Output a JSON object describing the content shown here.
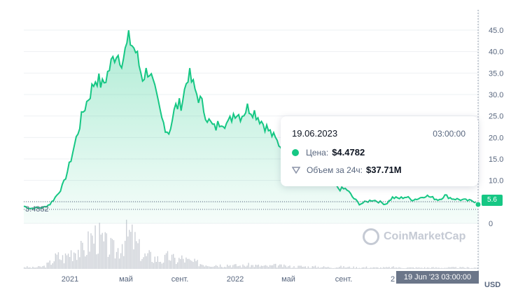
{
  "chart_data": {
    "type": "area",
    "y_axis": {
      "ticks": [
        "45.0",
        "40.0",
        "35.0",
        "30.0",
        "25.0",
        "20.0",
        "15.0",
        "10.0",
        "5.0",
        "0"
      ],
      "range": [
        0,
        48
      ],
      "unit": "USD"
    },
    "x_axis": {
      "ticks": [
        "2021",
        "май",
        "сент.",
        "2022",
        "май",
        "сент.",
        "2"
      ]
    },
    "series": [
      {
        "values": [
          4.0,
          3.5,
          3.6,
          3.7,
          4.5,
          6.5,
          9,
          14,
          20,
          26,
          30,
          34,
          32,
          36,
          40,
          38,
          43,
          40,
          34,
          36,
          30,
          24,
          21,
          27,
          28,
          35,
          31,
          28,
          24,
          22,
          24,
          23,
          26,
          25,
          27,
          26,
          24,
          22,
          20,
          18,
          17,
          16,
          13,
          11,
          10,
          10,
          9,
          9,
          8,
          8,
          6,
          4.5,
          5,
          5.5,
          5,
          4.5,
          6,
          5.8,
          6.2,
          5.5,
          5.8,
          6.5,
          6,
          5.5,
          6.5,
          5.8,
          5.6,
          5.4,
          5.2,
          5.0
        ]
      },
      {
        "values": [
          0.5,
          0.3,
          0.4,
          0.6,
          1.5,
          3,
          2.5,
          4,
          5,
          4,
          7,
          8,
          6,
          5,
          4,
          7,
          8,
          6,
          3,
          3,
          2.5,
          2,
          3,
          2,
          2.5,
          1.8,
          1.5,
          1.2,
          1,
          1,
          0.9,
          1,
          0.8,
          0.7,
          0.9,
          0.8,
          0.7,
          0.6,
          0.8,
          0.7,
          0.6,
          0.5,
          0.6,
          0.5,
          0.5,
          0.5,
          0.4,
          0.4,
          0.5,
          0.4,
          0.4,
          0.3,
          0.4,
          0.3,
          0.3,
          0.3,
          0.4,
          0.3,
          0.3,
          0.3,
          0.3,
          0.3,
          0.3,
          0.3,
          0.3,
          0.3,
          0.3,
          0.3,
          0.3,
          0.3
        ]
      }
    ],
    "price_tag": "5.6",
    "low_label": "3.4882",
    "colors": {
      "line": "#16c784",
      "volume": "#aab0bd",
      "tag": "#6b7689"
    }
  },
  "tooltip": {
    "date": "19.06.2023",
    "time": "03:00:00",
    "price_label": "Цена:",
    "price_value": "$4.4782",
    "volume_label": "Объем за 24ч:",
    "volume_value": "$37.71M"
  },
  "usd_label": "USD",
  "time_tag": "19 Jun '23   03:00:00",
  "watermark": "CoinMarketCap"
}
